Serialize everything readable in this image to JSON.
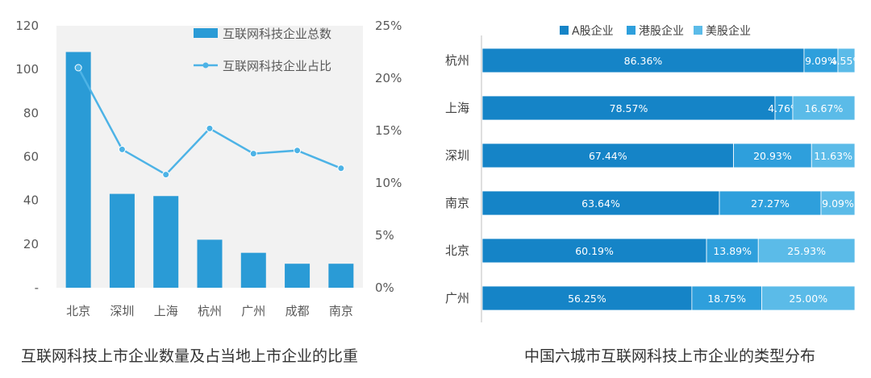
{
  "colors": {
    "bar_blue": "#2a9bd6",
    "line_blue": "#4db3e6",
    "panel_bg": "#f2f2f2",
    "a_share": "#1584c7",
    "hk_share": "#2e9fdc",
    "us_share": "#5bbbe8"
  },
  "captions": {
    "left": "互联网科技上市企业数量及占当地上市企业的比重",
    "right": "中国六城市互联网科技上市企业的类型分布"
  },
  "chart_data": [
    {
      "type": "bar",
      "categories": [
        "北京",
        "深圳",
        "上海",
        "杭州",
        "广州",
        "成都",
        "南京"
      ],
      "series": [
        {
          "name": "互联网科技企业总数",
          "type": "bar",
          "axis": "left",
          "values": [
            108,
            43,
            42,
            22,
            16,
            11,
            11
          ]
        },
        {
          "name": "互联网科技企业占比",
          "type": "line",
          "axis": "right",
          "values": [
            0.21,
            0.132,
            0.108,
            0.152,
            0.128,
            0.131,
            0.114
          ]
        }
      ],
      "y_left": {
        "ylim": [
          0,
          120
        ],
        "ticks": [
          "-",
          "20",
          "40",
          "60",
          "80",
          "100",
          "120"
        ]
      },
      "y_right": {
        "ylim": [
          0,
          0.25
        ],
        "ticks": [
          "0%",
          "5%",
          "10%",
          "15%",
          "20%",
          "25%"
        ]
      },
      "legend_position": "top-right"
    },
    {
      "type": "bar",
      "orientation": "horizontal",
      "stacked": true,
      "categories": [
        "杭州",
        "上海",
        "深圳",
        "南京",
        "北京",
        "广州"
      ],
      "series": [
        {
          "name": "A股企业",
          "values": [
            86.36,
            78.57,
            67.44,
            63.64,
            60.19,
            56.25
          ],
          "labels": [
            "86.36%",
            "78.57%",
            "67.44%",
            "63.64%",
            "60.19%",
            "56.25%"
          ]
        },
        {
          "name": "港股企业",
          "values": [
            9.09,
            4.76,
            20.93,
            27.27,
            13.89,
            18.75
          ],
          "labels": [
            "9.09%",
            "4.76%",
            "20.93%",
            "27.27%",
            "13.89%",
            "18.75%"
          ]
        },
        {
          "name": "美股企业",
          "values": [
            4.55,
            16.67,
            11.63,
            9.09,
            25.93,
            25.0
          ],
          "labels": [
            "4.55%",
            "16.67%",
            "11.63%",
            "9.09%",
            "25.93%",
            "25.00%"
          ]
        }
      ],
      "xlim": [
        0,
        100
      ],
      "legend_position": "top"
    }
  ]
}
